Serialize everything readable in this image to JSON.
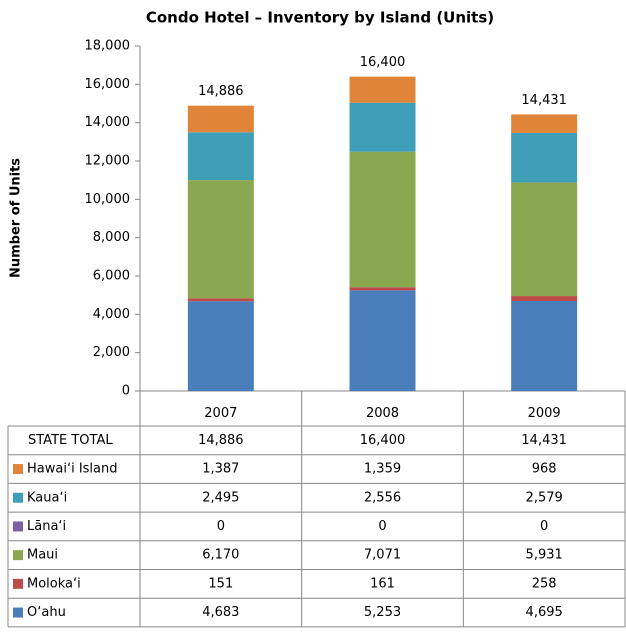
{
  "chart_data": {
    "type": "stacked_bar",
    "title": "Condo Hotel – Inventory by Island  (Units)",
    "y_label": "Number of Units",
    "categories": [
      "2007",
      "2008",
      "2009"
    ],
    "total_label": "STATE TOTAL",
    "totals": [
      14886,
      16400,
      14431
    ],
    "totals_labels": [
      "14,886",
      "16,400",
      "14,431"
    ],
    "series": [
      {
        "name": "Hawai‘i Island",
        "color": "#e0843a",
        "values": [
          1387,
          1359,
          968
        ],
        "value_labels": [
          "1,387",
          "1,359",
          "968"
        ]
      },
      {
        "name": "Kaua‘i",
        "color": "#3f9fb8",
        "values": [
          2495,
          2556,
          2579
        ],
        "value_labels": [
          "2,495",
          "2,556",
          "2,579"
        ]
      },
      {
        "name": "Lāna‘i",
        "color": "#7d60a0",
        "values": [
          0,
          0,
          0
        ]
      },
      {
        "name": "Maui",
        "color": "#8aa84f",
        "values": [
          6170,
          7071,
          5931
        ],
        "value_labels": [
          "6,170",
          "7,071",
          "5,931"
        ]
      },
      {
        "name": "Moloka‘i",
        "color": "#be4b48",
        "values": [
          151,
          161,
          258
        ]
      },
      {
        "name": "O‘ahu",
        "color": "#4a7ebb",
        "values": [
          4683,
          5253,
          4695
        ],
        "value_labels": [
          "4,683",
          "5,253",
          "4,695"
        ]
      }
    ],
    "ylim": [
      0,
      18000
    ],
    "yticks": [
      0,
      {
        "value": 2000,
        "label": "2,000"
      },
      {
        "value": 4000,
        "label": "4,000"
      },
      {
        "value": 6000,
        "label": "6,000"
      },
      {
        "value": 8000,
        "label": "8,000"
      },
      {
        "value": 10000,
        "label": "10,000"
      },
      {
        "value": 12000,
        "label": "12,000"
      },
      {
        "value": 14000,
        "label": "14,000"
      },
      {
        "value": 16000,
        "label": "16,000"
      },
      {
        "value": 18000,
        "label": "18,000"
      }
    ],
    "grid": false
  }
}
